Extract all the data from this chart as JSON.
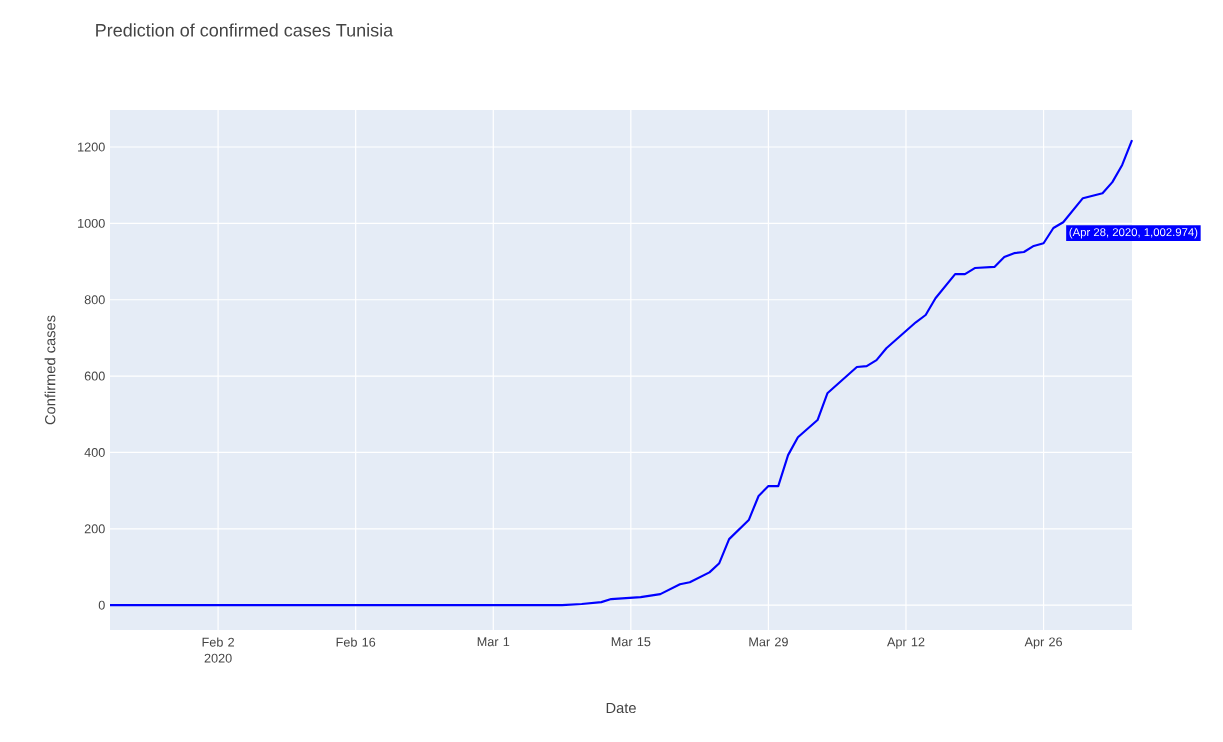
{
  "chart_data": {
    "type": "line",
    "title": "Prediction of confirmed cases Tunisia",
    "xlabel": "Date",
    "ylabel": "Confirmed cases",
    "x": [
      "2020-01-22",
      "2020-03-08",
      "2020-03-10",
      "2020-03-12",
      "2020-03-13",
      "2020-03-16",
      "2020-03-18",
      "2020-03-20",
      "2020-03-21",
      "2020-03-23",
      "2020-03-24",
      "2020-03-25",
      "2020-03-27",
      "2020-03-28",
      "2020-03-29",
      "2020-03-30",
      "2020-03-31",
      "2020-04-01",
      "2020-04-03",
      "2020-04-04",
      "2020-04-07",
      "2020-04-08",
      "2020-04-09",
      "2020-04-10",
      "2020-04-13",
      "2020-04-14",
      "2020-04-15",
      "2020-04-17",
      "2020-04-18",
      "2020-04-19",
      "2020-04-21",
      "2020-04-22",
      "2020-04-23",
      "2020-04-24",
      "2020-04-25",
      "2020-04-26",
      "2020-04-27",
      "2020-04-28",
      "2020-04-30",
      "2020-05-02",
      "2020-05-03",
      "2020-05-04",
      "2020-05-05"
    ],
    "series": [
      {
        "color": "#0000ff",
        "values": [
          0,
          0,
          3,
          8,
          16,
          21,
          29,
          55,
          60,
          86,
          110,
          173,
          223,
          286,
          312,
          312,
          393,
          440,
          485,
          555,
          624,
          626,
          642,
          673,
          741,
          760,
          804,
          867,
          867,
          883,
          886,
          912,
          922,
          925,
          941,
          948,
          988,
          1003,
          1066,
          1079,
          1108,
          1153,
          1218
        ]
      }
    ],
    "xlim": [
      "2020-01-22",
      "2020-05-05"
    ],
    "xticks": [
      {
        "value": "2020-02-02",
        "label": "Feb 2 2020"
      },
      {
        "value": "2020-02-16",
        "label": "Feb 16"
      },
      {
        "value": "2020-03-01",
        "label": "Mar 1"
      },
      {
        "value": "2020-03-15",
        "label": "Mar 15"
      },
      {
        "value": "2020-03-29",
        "label": "Mar 29"
      },
      {
        "value": "2020-04-12",
        "label": "Apr 12"
      },
      {
        "value": "2020-04-26",
        "label": "Apr 26"
      }
    ],
    "ylim": [
      -65,
      1297
    ],
    "yticks": [
      0,
      200,
      400,
      600,
      800,
      1000,
      1200
    ],
    "grid": true,
    "annotations": [
      {
        "text": "(Apr 28, 2020, 1,002.974)",
        "x": "2020-04-28",
        "y": 1002.974
      }
    ]
  }
}
